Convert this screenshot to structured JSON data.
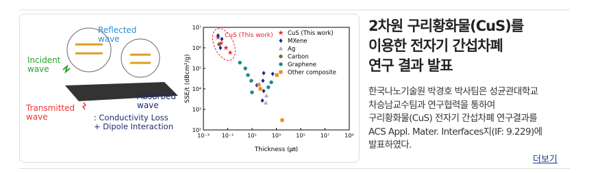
{
  "figure": {
    "labels": {
      "reflected": "Reflected\nwave",
      "incident": "Incident\nwave",
      "transmitted": "Transmitted\nwave",
      "absorbed": "Absorbed\nwave",
      "mechanism": [
        ": Conductivity Loss",
        "+ Dipole Interaction"
      ]
    },
    "chart": {
      "type": "scatter",
      "x_label": "Thickness (㎛)",
      "y_label": "SSE/t (dBcm²/g)",
      "annotation": "CuS (This work)",
      "log_x": true,
      "log_y": true,
      "xlim": [
        0.001,
        1000000000
      ],
      "ylim": [
        100,
        10000000
      ],
      "xticks": [
        {
          "value": 0.001,
          "label": "10⁻³"
        },
        {
          "value": 0.1,
          "label": "10⁻¹"
        },
        {
          "value": 10,
          "label": "10¹"
        },
        {
          "value": 1000,
          "label": "10³"
        },
        {
          "value": 100000,
          "label": "10⁵"
        },
        {
          "value": 10000000,
          "label": "10⁷"
        },
        {
          "value": 1000000000,
          "label": "10⁹"
        }
      ],
      "yticks": [
        {
          "value": 100,
          "label": "10²"
        },
        {
          "value": 1000,
          "label": "10³"
        },
        {
          "value": 10000,
          "label": "10⁴"
        },
        {
          "value": 100000,
          "label": "10⁵"
        },
        {
          "value": 1000000,
          "label": "10⁶"
        },
        {
          "value": 10000000,
          "label": "10⁷"
        }
      ],
      "series": [
        {
          "name": "CuS (This work)",
          "color": "#e8202a",
          "marker": "star",
          "x": [
            0.016,
            0.029,
            0.072,
            0.16
          ],
          "values": [
            3200000,
            1700000,
            1000000,
            590000
          ]
        },
        {
          "name": "MXene",
          "color": "#1f2a8a",
          "marker": "diamond",
          "x": [
            0.016,
            0.033,
            0.025,
            91,
            79,
            25,
            71,
            500,
            91
          ],
          "values": [
            4000000,
            2700000,
            1000000,
            59000,
            25000,
            15000,
            2700,
            54000,
            7900
          ]
        },
        {
          "name": "Ag",
          "color": "#b0b0b0",
          "marker": "triangle",
          "x": [
            135,
            150
          ],
          "values": [
            2100,
            4700
          ]
        },
        {
          "name": "Carbon",
          "color": "#7a6a30",
          "marker": "circle",
          "x": [
            0.02
          ],
          "values": [
            1500000
          ]
        },
        {
          "name": "Graphene",
          "color": "#1e8a86",
          "marker": "circle",
          "x": [
            1,
            2.8,
            4.6,
            8.7,
            220,
            380,
            10
          ],
          "values": [
            190000,
            100000,
            47000,
            25000,
            12000,
            21000,
            6800
          ]
        },
        {
          "name": "Other composite",
          "color": "#f08a20",
          "marker": "square",
          "x": [
            36,
            48,
            1100,
            3000
          ],
          "values": [
            16000,
            10000,
            47000,
            300
          ]
        }
      ]
    }
  },
  "headline": [
    "2차원 구리황화물(CuS)를",
    "이용한 전자기 간섭차폐",
    "연구 결과 발표"
  ],
  "body": [
    "한국나노기술원 박경호 박사팀은 성균관대학교",
    "차승남교수팀과 연구협력을 통하여",
    "구리황화물(CuS) 전자기 간섭차폐 연구결과를",
    "ACS Appl. Mater. Interfaces지(IF: 9.229)에",
    "발표하였다."
  ],
  "more": "더보기"
}
